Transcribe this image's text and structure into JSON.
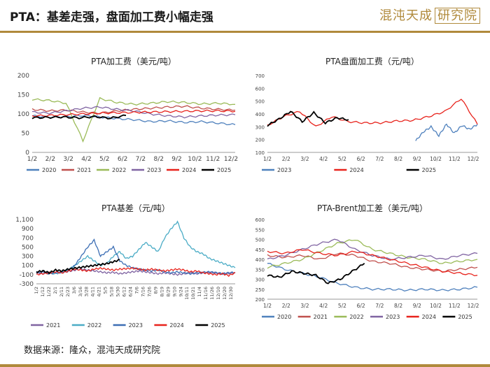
{
  "header": {
    "title": "PTA：基差走强，盘面加工费小幅走强",
    "logo_text": "混沌天成",
    "logo_box_text": "研究院"
  },
  "footer": {
    "source": "数据来源：隆众，混沌天成研究院"
  },
  "colors": {
    "2020": "#4f81bd",
    "2021": "#c0504d",
    "2022": "#9bbb59",
    "2023": "#8064a2",
    "2024": "#e8231c",
    "2025": "#000000",
    "c2022_blue": "#4bacc6",
    "c2023_dark": "#3c6eb4",
    "gold": "#b08a3c"
  },
  "chart_data": [
    {
      "id": "c1",
      "type": "line",
      "title": "PTA加工费（美元/吨）",
      "ylim": [
        0,
        200
      ],
      "yticks": [
        "0",
        "50",
        "100",
        "150",
        "200"
      ],
      "xticks": [
        "1/2",
        "2/2",
        "3/2",
        "4/2",
        "5/2",
        "6/2",
        "7/2",
        "8/2",
        "9/2",
        "10/2",
        "11/2",
        "12/2"
      ],
      "series": [
        {
          "name": "2020",
          "color": "#4f81bd",
          "values": [
            95,
            92,
            93,
            96,
            92,
            88,
            85,
            80,
            82,
            78,
            80,
            76,
            72
          ]
        },
        {
          "name": "2021",
          "color": "#c0504d",
          "values": [
            112,
            108,
            110,
            105,
            102,
            108,
            112,
            115,
            118,
            120,
            115,
            112,
            110
          ]
        },
        {
          "name": "2022",
          "color": "#9bbb59",
          "values": [
            138,
            135,
            128,
            30,
            140,
            130,
            125,
            128,
            132,
            130,
            126,
            128,
            125
          ]
        },
        {
          "name": "2023",
          "color": "#8064a2",
          "values": [
            105,
            102,
            108,
            115,
            118,
            112,
            108,
            100,
            95,
            92,
            95,
            97,
            98
          ]
        },
        {
          "name": "2024",
          "color": "#e8231c",
          "values": [
            95,
            96,
            98,
            100,
            102,
            103,
            104,
            105,
            106,
            107,
            108,
            108,
            107
          ]
        },
        {
          "name": "2025",
          "color": "#000000",
          "values": [
            90,
            91,
            92,
            90,
            93,
            89,
            96
          ]
        }
      ],
      "legend": [
        "2020",
        "2021",
        "2022",
        "2023",
        "2024",
        "2025"
      ]
    },
    {
      "id": "c2",
      "type": "line",
      "title": "PTA盘面加工费（元/吨）",
      "ylim": [
        100,
        700
      ],
      "yticks": [
        "100",
        "200",
        "300",
        "400",
        "500",
        "600",
        "700"
      ],
      "xticks": [
        "1/2",
        "2/2",
        "3/2",
        "4/2",
        "5/2",
        "6/2",
        "7/2",
        "8/2",
        "9/2",
        "10/2",
        "11/2",
        "12/2"
      ],
      "series": [
        {
          "name": "2023",
          "color": "#4f81bd",
          "x0": 8.4,
          "values": [
            190,
            260,
            300,
            230,
            320,
            250,
            310,
            280,
            320
          ]
        },
        {
          "name": "2024",
          "color": "#e8231c",
          "values": [
            310,
            380,
            420,
            300,
            380,
            340,
            330,
            330,
            345,
            350,
            380,
            420,
            520,
            320
          ]
        },
        {
          "name": "2025",
          "color": "#000000",
          "values": [
            310,
            360,
            420,
            340,
            410,
            330,
            370,
            355
          ]
        }
      ],
      "legend": [
        "2023",
        "2024",
        "2025"
      ]
    },
    {
      "id": "c3",
      "type": "line",
      "title": "PTA基差（元/吨）",
      "ylim": [
        -300,
        1100
      ],
      "yticks": [
        "-300",
        "-100",
        "100",
        "300",
        "500",
        "700",
        "900",
        "1,100"
      ],
      "xticks": [
        "1/2",
        "1/12",
        "1/22",
        "2/1",
        "2/11",
        "2/23",
        "3/6",
        "3/16",
        "3/28",
        "4/11",
        "4/21",
        "5/5",
        "5/18",
        "5/30",
        "6/12",
        "6/24",
        "7/6",
        "7/16",
        "7/26",
        "8/9",
        "8/19",
        "8/29",
        "9/10",
        "9/24",
        "10/11",
        "10/21",
        "11/4",
        "11/16",
        "11/26",
        "12/10",
        "12/20",
        "12/30"
      ],
      "series": [
        {
          "name": "2021",
          "color": "#8064a2",
          "values": [
            -50,
            -80,
            -60,
            -40,
            -50,
            -30,
            0,
            20,
            0,
            -20,
            -40,
            -60,
            -50,
            -80,
            -60,
            -40,
            -20,
            -40,
            -60,
            -80,
            -60,
            -80,
            -100,
            -80,
            -60,
            -80,
            -60,
            -50,
            -60,
            -80,
            -70,
            -60
          ]
        },
        {
          "name": "2022",
          "color": "#4bacc6",
          "values": [
            -40,
            -20,
            -60,
            -80,
            -40,
            0,
            100,
            200,
            300,
            200,
            100,
            150,
            300,
            400,
            250,
            300,
            450,
            600,
            500,
            400,
            700,
            900,
            1050,
            700,
            500,
            400,
            350,
            250,
            200,
            150,
            100,
            50
          ]
        },
        {
          "name": "2023",
          "color": "#3c6eb4",
          "values": [
            -60,
            -40,
            -80,
            -60,
            -50,
            0,
            100,
            300,
            500,
            650,
            300,
            400,
            500,
            200,
            100,
            50,
            20,
            0,
            -20,
            0,
            -40,
            -60,
            -40,
            -60,
            -80,
            -60,
            -50,
            -40,
            -60,
            -80,
            -60,
            -50
          ]
        },
        {
          "name": "2024",
          "color": "#e8231c",
          "values": [
            -100,
            -80,
            -60,
            -40,
            -60,
            -20,
            20,
            0,
            -20,
            20,
            40,
            20,
            0,
            20,
            30,
            40,
            20,
            0,
            20,
            0,
            -20,
            0,
            20,
            0,
            -40,
            -20,
            -60,
            -80,
            -100,
            -80,
            -120,
            -60
          ]
        },
        {
          "name": "2025",
          "color": "#000000",
          "values": [
            -40,
            -20,
            -60,
            0,
            -20,
            20,
            40,
            60,
            80,
            100,
            120,
            140,
            180,
            220
          ]
        }
      ],
      "legend": [
        "2021",
        "2022",
        "2023",
        "2024",
        "2025"
      ]
    },
    {
      "id": "c4",
      "type": "line",
      "title": "PTA-Brent加工差（美元/吨）",
      "ylim": [
        200,
        600
      ],
      "yticks": [
        "200",
        "250",
        "300",
        "350",
        "400",
        "450",
        "500",
        "550",
        "600"
      ],
      "xticks": [
        "1/2",
        "2/2",
        "3/2",
        "4/2",
        "5/2",
        "6/2",
        "7/2",
        "8/2",
        "9/2",
        "10/2",
        "11/2",
        "12/2"
      ],
      "series": [
        {
          "name": "2020",
          "color": "#4f81bd",
          "values": [
            380,
            350,
            330,
            310,
            280,
            260,
            250,
            250,
            245,
            250,
            245,
            250,
            260
          ]
        },
        {
          "name": "2021",
          "color": "#c0504d",
          "values": [
            420,
            410,
            420,
            400,
            430,
            420,
            390,
            380,
            360,
            350,
            340,
            350,
            360
          ]
        },
        {
          "name": "2022",
          "color": "#9bbb59",
          "values": [
            360,
            380,
            400,
            440,
            480,
            500,
            450,
            430,
            410,
            400,
            380,
            390,
            400
          ]
        },
        {
          "name": "2023",
          "color": "#8064a2",
          "values": [
            400,
            420,
            450,
            480,
            500,
            450,
            420,
            400,
            410,
            420,
            400,
            420,
            430
          ]
        },
        {
          "name": "2024",
          "color": "#e8231c",
          "values": [
            440,
            430,
            450,
            430,
            420,
            440,
            420,
            400,
            380,
            360,
            340,
            330,
            320
          ]
        },
        {
          "name": "2025",
          "color": "#000000",
          "values": [
            320,
            310,
            340,
            330,
            320,
            280,
            300,
            340,
            380
          ]
        }
      ],
      "legend": [
        "2020",
        "2021",
        "2022",
        "2023",
        "2024",
        "2025"
      ]
    }
  ]
}
